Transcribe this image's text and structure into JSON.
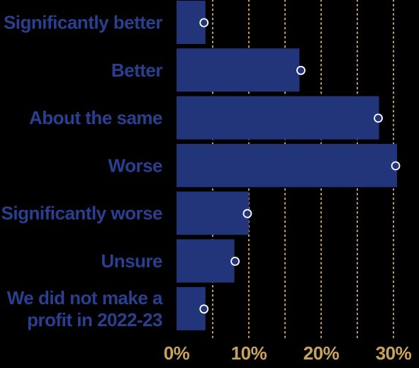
{
  "chart_data": {
    "type": "bar",
    "orientation": "horizontal",
    "categories": [
      [
        "Significantly better"
      ],
      [
        "Better"
      ],
      [
        "About the same"
      ],
      [
        "Worse"
      ],
      [
        "Significantly worse"
      ],
      [
        "Unsure"
      ],
      [
        "We did not make a",
        "profit in 2022-23"
      ]
    ],
    "values": [
      4,
      17,
      28,
      30.5,
      10,
      8,
      4
    ],
    "markers": [
      3.8,
      17.2,
      27.9,
      30.3,
      9.8,
      8.1,
      3.8
    ],
    "xlim": [
      0,
      32
    ],
    "xticks": [
      0,
      10,
      20,
      30
    ],
    "xtick_labels": [
      "0%",
      "10%",
      "20%",
      "30%"
    ],
    "grid": "vertical dotted",
    "colors": {
      "background": "#000000",
      "bar": "#23357a",
      "bar_edge": "#2e4494",
      "label": "#2a3f8f",
      "tick_label": "#c9a35c",
      "grid": "#c9a35c",
      "marker_fill": "#23357a",
      "marker_stroke": "#ffffff"
    }
  }
}
